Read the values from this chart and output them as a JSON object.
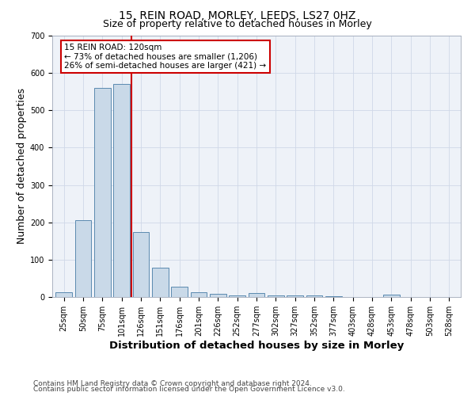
{
  "title": "15, REIN ROAD, MORLEY, LEEDS, LS27 0HZ",
  "subtitle": "Size of property relative to detached houses in Morley",
  "xlabel": "Distribution of detached houses by size in Morley",
  "ylabel": "Number of detached properties",
  "categories": [
    "25sqm",
    "50sqm",
    "75sqm",
    "101sqm",
    "126sqm",
    "151sqm",
    "176sqm",
    "201sqm",
    "226sqm",
    "252sqm",
    "277sqm",
    "302sqm",
    "327sqm",
    "352sqm",
    "377sqm",
    "403sqm",
    "428sqm",
    "453sqm",
    "478sqm",
    "503sqm",
    "528sqm"
  ],
  "values": [
    12,
    205,
    560,
    570,
    175,
    78,
    28,
    12,
    8,
    5,
    10,
    5,
    4,
    5,
    2,
    1,
    0,
    7,
    1,
    1,
    1
  ],
  "bar_color": "#c9d9e8",
  "bar_edge_color": "#5a8ab0",
  "property_line_color": "#cc0000",
  "annotation_line1": "15 REIN ROAD: 120sqm",
  "annotation_line2": "← 73% of detached houses are smaller (1,206)",
  "annotation_line3": "26% of semi-detached houses are larger (421) →",
  "annotation_box_edge": "#cc0000",
  "ylim": [
    0,
    700
  ],
  "yticks": [
    0,
    100,
    200,
    300,
    400,
    500,
    600,
    700
  ],
  "footer_line1": "Contains HM Land Registry data © Crown copyright and database right 2024.",
  "footer_line2": "Contains public sector information licensed under the Open Government Licence v3.0.",
  "background_color": "#ffffff",
  "plot_bg_color": "#eef2f8",
  "grid_color": "#d0d8e8",
  "title_fontsize": 10,
  "subtitle_fontsize": 9,
  "axis_label_fontsize": 9,
  "tick_fontsize": 7,
  "footer_fontsize": 6.5,
  "annot_fontsize": 7.5
}
